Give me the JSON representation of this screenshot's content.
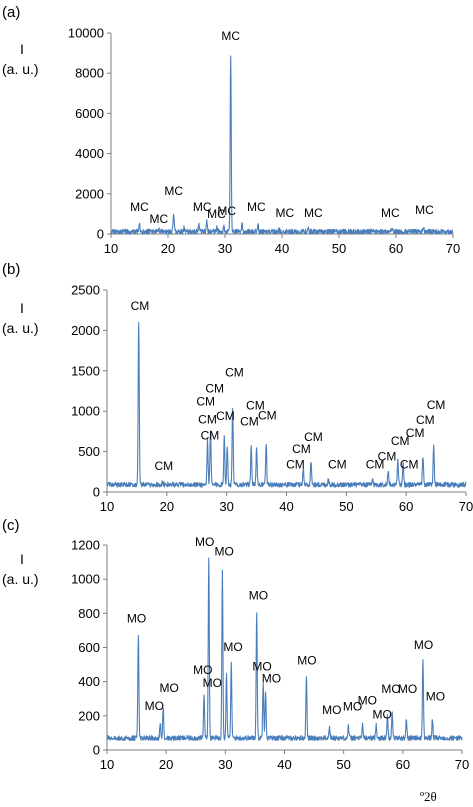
{
  "figure": {
    "xunit": "º2θ"
  },
  "chart_data": [
    {
      "type": "line",
      "panel_label": "(a)",
      "ylabel_line1": "I",
      "ylabel_line2": "(a. u.)",
      "xlim": [
        10,
        70
      ],
      "ylim": [
        0,
        10000
      ],
      "xticks": [
        10,
        20,
        30,
        40,
        50,
        60,
        70
      ],
      "yticks": [
        0,
        2000,
        4000,
        6000,
        8000,
        10000
      ],
      "baseline": 120,
      "peaks": [
        {
          "x": 15.0,
          "y": 450
        },
        {
          "x": 18.4,
          "y": 200
        },
        {
          "x": 21.0,
          "y": 1050
        },
        {
          "x": 22.8,
          "y": 300
        },
        {
          "x": 25.4,
          "y": 480
        },
        {
          "x": 26.8,
          "y": 600
        },
        {
          "x": 28.6,
          "y": 330
        },
        {
          "x": 29.8,
          "y": 350
        },
        {
          "x": 31.0,
          "y": 8950
        },
        {
          "x": 33.0,
          "y": 500
        },
        {
          "x": 35.8,
          "y": 480
        },
        {
          "x": 39.5,
          "y": 200
        },
        {
          "x": 44.6,
          "y": 300
        },
        {
          "x": 59.3,
          "y": 250
        },
        {
          "x": 64.8,
          "y": 350
        }
      ],
      "annotations": [
        {
          "text": "MC",
          "x": 31.0,
          "y": 9650
        },
        {
          "text": "MC",
          "x": 21.0,
          "y": 1950
        },
        {
          "text": "MC",
          "x": 15.0,
          "y": 1150
        },
        {
          "text": "MC",
          "x": 18.4,
          "y": 550
        },
        {
          "text": "MC",
          "x": 26.0,
          "y": 1150
        },
        {
          "text": "MC",
          "x": 28.5,
          "y": 800
        },
        {
          "text": "MC",
          "x": 30.3,
          "y": 950
        },
        {
          "text": "MC",
          "x": 35.5,
          "y": 1150
        },
        {
          "text": "MC",
          "x": 40.5,
          "y": 850
        },
        {
          "text": "MC",
          "x": 45.5,
          "y": 850
        },
        {
          "text": "MC",
          "x": 59.0,
          "y": 850
        },
        {
          "text": "MC",
          "x": 65.0,
          "y": 1000
        }
      ]
    },
    {
      "type": "line",
      "panel_label": "(b)",
      "ylabel_line1": "I",
      "ylabel_line2": "(a. u.)",
      "xlim": [
        10,
        70
      ],
      "ylim": [
        0,
        2500
      ],
      "xticks": [
        10,
        20,
        30,
        40,
        50,
        60,
        70
      ],
      "yticks": [
        0,
        500,
        1000,
        1500,
        2000,
        2500
      ],
      "baseline": 90,
      "peaks": [
        {
          "x": 15.3,
          "y": 2120
        },
        {
          "x": 19.3,
          "y": 150
        },
        {
          "x": 26.8,
          "y": 640
        },
        {
          "x": 27.3,
          "y": 760
        },
        {
          "x": 29.6,
          "y": 700
        },
        {
          "x": 30.1,
          "y": 580
        },
        {
          "x": 31.0,
          "y": 1060
        },
        {
          "x": 34.1,
          "y": 560
        },
        {
          "x": 35.0,
          "y": 570
        },
        {
          "x": 36.6,
          "y": 610
        },
        {
          "x": 42.8,
          "y": 300
        },
        {
          "x": 44.1,
          "y": 390
        },
        {
          "x": 47.0,
          "y": 160
        },
        {
          "x": 54.4,
          "y": 160
        },
        {
          "x": 57.0,
          "y": 260
        },
        {
          "x": 58.6,
          "y": 420
        },
        {
          "x": 59.5,
          "y": 350
        },
        {
          "x": 62.8,
          "y": 450
        },
        {
          "x": 64.6,
          "y": 580
        }
      ],
      "annotations": [
        {
          "text": "CM",
          "x": 15.5,
          "y": 2250
        },
        {
          "text": "CM",
          "x": 19.5,
          "y": 270
        },
        {
          "text": "CM",
          "x": 26.8,
          "y": 850
        },
        {
          "text": "CM",
          "x": 27.2,
          "y": 650
        },
        {
          "text": "CM",
          "x": 26.5,
          "y": 1070
        },
        {
          "text": "CM",
          "x": 28.0,
          "y": 1230
        },
        {
          "text": "CM",
          "x": 29.8,
          "y": 890
        },
        {
          "text": "CM",
          "x": 31.3,
          "y": 1430
        },
        {
          "text": "CM",
          "x": 34.8,
          "y": 1020
        },
        {
          "text": "CM",
          "x": 33.8,
          "y": 820
        },
        {
          "text": "CM",
          "x": 36.8,
          "y": 900
        },
        {
          "text": "CM",
          "x": 41.5,
          "y": 290
        },
        {
          "text": "CM",
          "x": 42.5,
          "y": 480
        },
        {
          "text": "CM",
          "x": 44.5,
          "y": 630
        },
        {
          "text": "CM",
          "x": 48.5,
          "y": 290
        },
        {
          "text": "CM",
          "x": 54.8,
          "y": 290
        },
        {
          "text": "CM",
          "x": 56.8,
          "y": 390
        },
        {
          "text": "CM",
          "x": 59.0,
          "y": 580
        },
        {
          "text": "CM",
          "x": 61.5,
          "y": 680
        },
        {
          "text": "CM",
          "x": 63.2,
          "y": 840
        },
        {
          "text": "CM",
          "x": 65.0,
          "y": 1030
        },
        {
          "text": "CM",
          "x": 60.5,
          "y": 290
        }
      ]
    },
    {
      "type": "line",
      "panel_label": "(c)",
      "ylabel_line1": "I",
      "ylabel_line2": "(a. u.)",
      "xlim": [
        10,
        70
      ],
      "ylim": [
        0,
        1200
      ],
      "xticks": [
        10,
        20,
        30,
        40,
        50,
        60,
        70
      ],
      "yticks": [
        0,
        200,
        400,
        600,
        800,
        1000,
        1200
      ],
      "baseline": 70,
      "peaks": [
        {
          "x": 15.3,
          "y": 670
        },
        {
          "x": 19.0,
          "y": 150
        },
        {
          "x": 19.5,
          "y": 250
        },
        {
          "x": 26.4,
          "y": 320
        },
        {
          "x": 27.2,
          "y": 1120
        },
        {
          "x": 29.5,
          "y": 1060
        },
        {
          "x": 30.2,
          "y": 450
        },
        {
          "x": 31.0,
          "y": 500
        },
        {
          "x": 35.3,
          "y": 810
        },
        {
          "x": 36.4,
          "y": 400
        },
        {
          "x": 36.8,
          "y": 350
        },
        {
          "x": 43.7,
          "y": 430
        },
        {
          "x": 47.6,
          "y": 130
        },
        {
          "x": 50.8,
          "y": 140
        },
        {
          "x": 53.2,
          "y": 150
        },
        {
          "x": 55.5,
          "y": 150
        },
        {
          "x": 57.4,
          "y": 200
        },
        {
          "x": 58.2,
          "y": 230
        },
        {
          "x": 60.6,
          "y": 180
        },
        {
          "x": 63.4,
          "y": 520
        },
        {
          "x": 65.0,
          "y": 180
        }
      ],
      "annotations": [
        {
          "text": "MO",
          "x": 15.0,
          "y": 745
        },
        {
          "text": "MO",
          "x": 18.0,
          "y": 235
        },
        {
          "text": "MO",
          "x": 20.5,
          "y": 340
        },
        {
          "text": "MO",
          "x": 26.5,
          "y": 1195
        },
        {
          "text": "MO",
          "x": 29.8,
          "y": 1140
        },
        {
          "text": "MO",
          "x": 26.2,
          "y": 445
        },
        {
          "text": "MO",
          "x": 27.8,
          "y": 370
        },
        {
          "text": "MO",
          "x": 31.3,
          "y": 580
        },
        {
          "text": "MO",
          "x": 35.6,
          "y": 880
        },
        {
          "text": "MO",
          "x": 36.2,
          "y": 465
        },
        {
          "text": "MO",
          "x": 37.8,
          "y": 395
        },
        {
          "text": "MO",
          "x": 43.8,
          "y": 500
        },
        {
          "text": "MO",
          "x": 48.0,
          "y": 210
        },
        {
          "text": "MO",
          "x": 51.5,
          "y": 230
        },
        {
          "text": "MO",
          "x": 54.0,
          "y": 265
        },
        {
          "text": "MO",
          "x": 56.5,
          "y": 185
        },
        {
          "text": "MO",
          "x": 58.0,
          "y": 335
        },
        {
          "text": "MO",
          "x": 60.8,
          "y": 335
        },
        {
          "text": "MO",
          "x": 63.5,
          "y": 590
        },
        {
          "text": "MO",
          "x": 65.5,
          "y": 290
        }
      ]
    }
  ],
  "colors": {
    "line": "#4a7ebb",
    "axis": "#7f7f7f"
  }
}
